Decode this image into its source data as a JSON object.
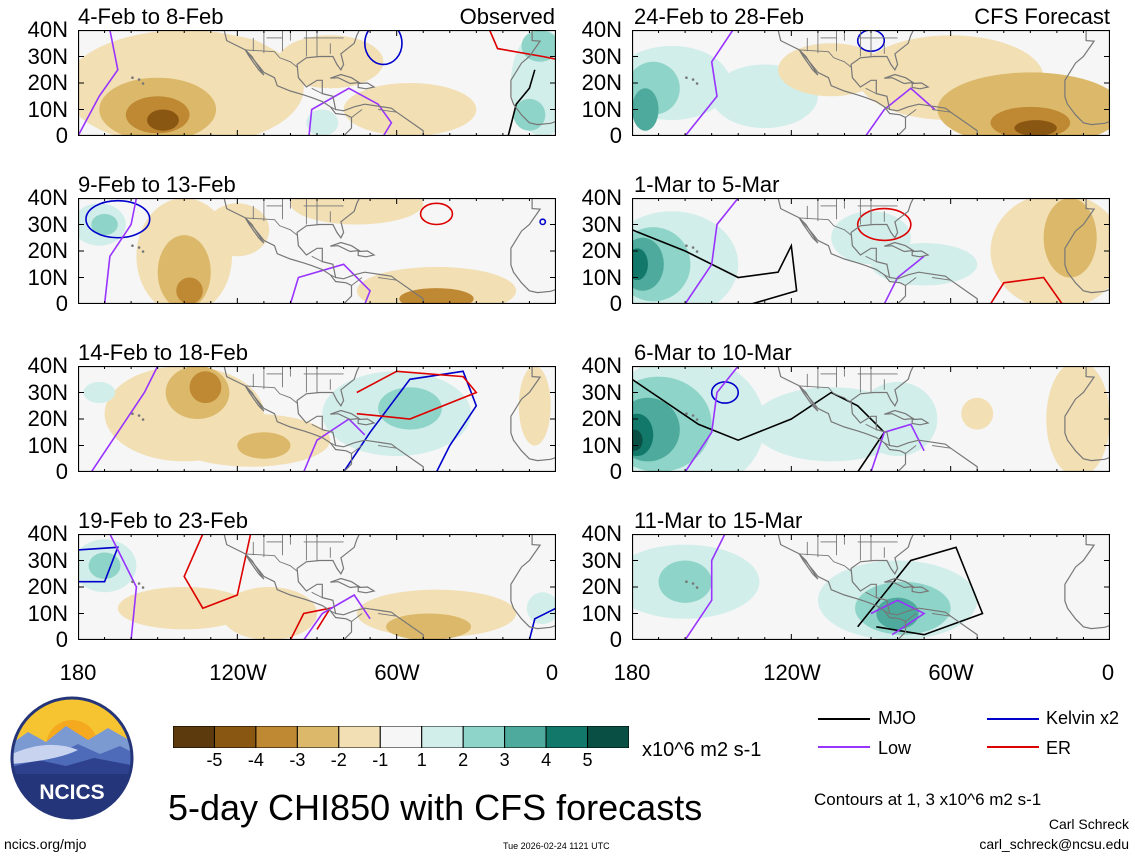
{
  "left_header": "Observed",
  "right_header": "CFS Forecast",
  "left_periods": [
    "4-Feb to 8-Feb",
    "9-Feb to 13-Feb",
    "14-Feb to 18-Feb",
    "19-Feb to 23-Feb"
  ],
  "right_periods": [
    "24-Feb to 28-Feb",
    "1-Mar to 5-Mar",
    "6-Mar to 10-Mar",
    "11-Mar to 15-Mar"
  ],
  "y_labels": [
    "40N",
    "30N",
    "20N",
    "10N",
    "0"
  ],
  "x_labels": [
    "180",
    "120W",
    "60W",
    "0"
  ],
  "colors": {
    "mjo": "#000000",
    "kelvin": "#0000cc",
    "low": "#9933ff",
    "er": "#dd0000",
    "land": "#777777",
    "bins": [
      "#5c3a0d",
      "#8a5713",
      "#bf8833",
      "#dcb96a",
      "#f2dfb4",
      "#f6f6f6",
      "#d2eeea",
      "#8fd4c8",
      "#4daa9c",
      "#12786a",
      "#0a4f44"
    ]
  },
  "colorbar": {
    "ticks": [
      "-5",
      "-4",
      "-3",
      "-2",
      "-1",
      "1",
      "2",
      "3",
      "4",
      "5"
    ],
    "units": "x10^6 m2 s-1"
  },
  "legend": {
    "mjo": "MJO",
    "kelvin": "Kelvin x2",
    "low": "Low",
    "er": "ER"
  },
  "title": "5-day CHI850 with CFS forecasts",
  "contour_note": "Contours at 1, 3 x10^6 m2 s-1",
  "author": "Carl Schreck",
  "email": "carl_schreck@ncsu.edu",
  "site": "ncics.org/mjo",
  "timestamp": "Tue 2026-02-24 1121 UTC",
  "logo_text": "NCICS",
  "chart_data": [
    {
      "type": "heatmap",
      "panel": "observed-1",
      "period": "4-Feb to 8-Feb",
      "xlim": [
        -180,
        0
      ],
      "ylim": [
        0,
        40
      ],
      "blobs": [
        {
          "lon": -150,
          "lat": 10,
          "value": -4
        },
        {
          "lon": -20,
          "lat": 25,
          "value": 3
        }
      ],
      "contours": [
        "Low",
        "Kelvin x2",
        "ER",
        "MJO"
      ]
    },
    {
      "type": "heatmap",
      "panel": "observed-2",
      "period": "9-Feb to 13-Feb",
      "xlim": [
        -180,
        0
      ],
      "ylim": [
        0,
        40
      ],
      "blobs": [
        {
          "lon": -140,
          "lat": 15,
          "value": -3
        },
        {
          "lon": -170,
          "lat": 30,
          "value": 2
        },
        {
          "lon": -40,
          "lat": 5,
          "value": -3
        }
      ],
      "contours": [
        "Low",
        "Kelvin x2",
        "ER"
      ]
    },
    {
      "type": "heatmap",
      "panel": "observed-3",
      "period": "14-Feb to 18-Feb",
      "xlim": [
        -180,
        0
      ],
      "ylim": [
        0,
        40
      ],
      "blobs": [
        {
          "lon": -140,
          "lat": 30,
          "value": -3
        },
        {
          "lon": -60,
          "lat": 20,
          "value": 2
        }
      ],
      "contours": [
        "Low",
        "Kelvin x2",
        "ER"
      ]
    },
    {
      "type": "heatmap",
      "panel": "observed-4",
      "period": "19-Feb to 23-Feb",
      "xlim": [
        -180,
        0
      ],
      "ylim": [
        0,
        40
      ],
      "blobs": [
        {
          "lon": -170,
          "lat": 30,
          "value": 2
        },
        {
          "lon": -50,
          "lat": 10,
          "value": -2
        }
      ],
      "contours": [
        "Low",
        "Kelvin x2",
        "ER"
      ]
    },
    {
      "type": "heatmap",
      "panel": "forecast-1",
      "period": "24-Feb to 28-Feb",
      "xlim": [
        -180,
        0
      ],
      "ylim": [
        0,
        40
      ],
      "blobs": [
        {
          "lon": -170,
          "lat": 20,
          "value": 2
        },
        {
          "lon": -30,
          "lat": 5,
          "value": -4
        }
      ],
      "contours": [
        "Low",
        "Kelvin x2"
      ]
    },
    {
      "type": "heatmap",
      "panel": "forecast-2",
      "period": "1-Mar to 5-Mar",
      "xlim": [
        -180,
        0
      ],
      "ylim": [
        0,
        40
      ],
      "blobs": [
        {
          "lon": -175,
          "lat": 15,
          "value": 4
        },
        {
          "lon": -20,
          "lat": 25,
          "value": -2
        }
      ],
      "contours": [
        "Low",
        "MJO",
        "ER"
      ]
    },
    {
      "type": "heatmap",
      "panel": "forecast-3",
      "period": "6-Mar to 10-Mar",
      "xlim": [
        -180,
        0
      ],
      "ylim": [
        0,
        40
      ],
      "blobs": [
        {
          "lon": -175,
          "lat": 15,
          "value": 5
        },
        {
          "lon": -15,
          "lat": 20,
          "value": -2
        }
      ],
      "contours": [
        "Low",
        "MJO",
        "Kelvin x2"
      ]
    },
    {
      "type": "heatmap",
      "panel": "forecast-4",
      "period": "11-Mar to 15-Mar",
      "xlim": [
        -180,
        0
      ],
      "ylim": [
        0,
        40
      ],
      "blobs": [
        {
          "lon": -160,
          "lat": 20,
          "value": 2
        },
        {
          "lon": -80,
          "lat": 10,
          "value": 3
        }
      ],
      "contours": [
        "Low",
        "MJO"
      ]
    }
  ]
}
